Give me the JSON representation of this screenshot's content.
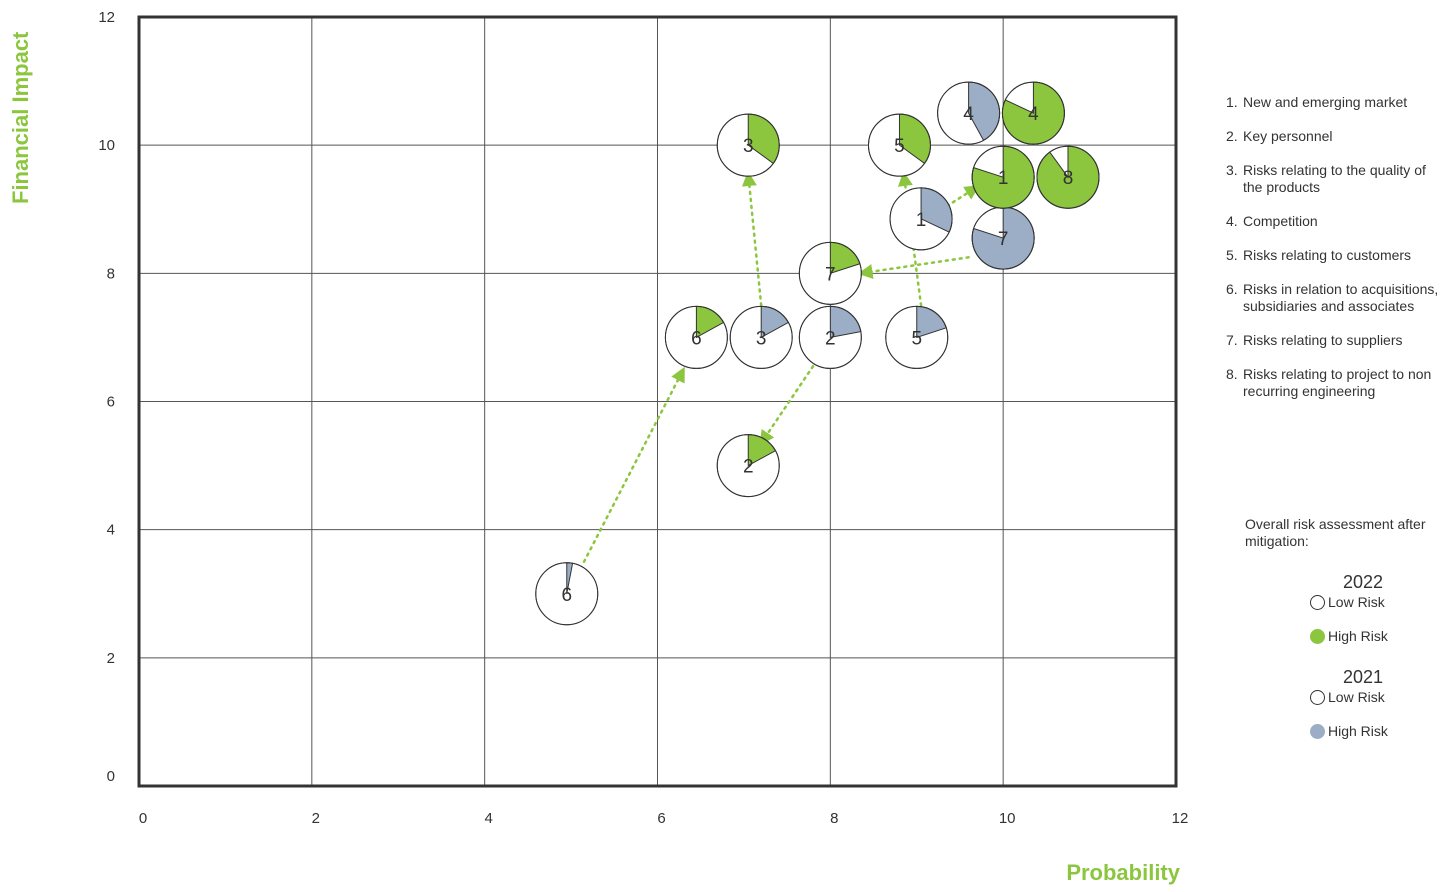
{
  "chart_data": {
    "type": "scatter",
    "xlabel": "Probability",
    "ylabel": "Financial Impact",
    "xlim": [
      0,
      12
    ],
    "ylim": [
      0,
      12
    ],
    "x_ticks": [
      "0",
      "2",
      "4",
      "6",
      "8",
      "10",
      "12"
    ],
    "y_ticks": [
      "0",
      "2",
      "4",
      "6",
      "8",
      "10",
      "12"
    ],
    "grid": true,
    "series": [
      {
        "name": "2022",
        "color": "#8cc63f",
        "points": [
          {
            "risk": "1",
            "x": 10.0,
            "y": 9.5,
            "high_risk_share": 0.8
          },
          {
            "risk": "2",
            "x": 7.05,
            "y": 5.0,
            "high_risk_share": 0.17
          },
          {
            "risk": "3",
            "x": 7.05,
            "y": 10.0,
            "high_risk_share": 0.35
          },
          {
            "risk": "4",
            "x": 10.35,
            "y": 10.5,
            "high_risk_share": 0.82
          },
          {
            "risk": "5",
            "x": 8.8,
            "y": 10.0,
            "high_risk_share": 0.35
          },
          {
            "risk": "6",
            "x": 6.45,
            "y": 7.0,
            "high_risk_share": 0.17
          },
          {
            "risk": "7",
            "x": 8.0,
            "y": 8.0,
            "high_risk_share": 0.2
          },
          {
            "risk": "8",
            "x": 10.75,
            "y": 9.5,
            "high_risk_share": 0.9
          }
        ]
      },
      {
        "name": "2021",
        "color": "#9caec5",
        "points": [
          {
            "risk": "1",
            "x": 9.05,
            "y": 8.85,
            "high_risk_share": 0.32
          },
          {
            "risk": "2",
            "x": 8.0,
            "y": 7.0,
            "high_risk_share": 0.22
          },
          {
            "risk": "3",
            "x": 7.2,
            "y": 7.0,
            "high_risk_share": 0.17
          },
          {
            "risk": "4",
            "x": 9.6,
            "y": 10.5,
            "high_risk_share": 0.42
          },
          {
            "risk": "5",
            "x": 9.0,
            "y": 7.0,
            "high_risk_share": 0.2
          },
          {
            "risk": "6",
            "x": 4.95,
            "y": 3.0,
            "high_risk_share": 0.03
          },
          {
            "risk": "7",
            "x": 10.0,
            "y": 8.55,
            "high_risk_share": 0.8
          }
        ]
      }
    ],
    "arrows": [
      {
        "risk": "6",
        "from": [
          5.15,
          3.5
        ],
        "to": [
          6.3,
          6.5
        ]
      },
      {
        "risk": "3",
        "from": [
          7.2,
          7.5
        ],
        "to": [
          7.05,
          9.55
        ]
      },
      {
        "risk": "2",
        "from": [
          7.8,
          6.55
        ],
        "to": [
          7.2,
          5.35
        ]
      },
      {
        "risk": "7",
        "from": [
          9.6,
          8.25
        ],
        "to": [
          8.35,
          8.0
        ]
      },
      {
        "risk": "5",
        "from": [
          9.05,
          7.5
        ],
        "to": [
          8.85,
          9.55
        ]
      },
      {
        "risk": "1",
        "from": [
          9.35,
          9.05
        ],
        "to": [
          9.7,
          9.35
        ]
      }
    ]
  },
  "risk_list": [
    {
      "num": "1.",
      "text": "New and emerging market"
    },
    {
      "num": "2.",
      "text": "Key personnel"
    },
    {
      "num": "3.",
      "text": "Risks relating to the quality of the products"
    },
    {
      "num": "4.",
      "text": "Competition"
    },
    {
      "num": "5.",
      "text": "Risks relating to customers"
    },
    {
      "num": "6.",
      "text": "Risks in relation to acquisitions, subsidiaries and associates"
    },
    {
      "num": "7.",
      "text": "Risks relating to suppliers"
    },
    {
      "num": "8.",
      "text": "Risks relating to project to non recurring engineering"
    }
  ],
  "legend": {
    "title": "Overall risk assessment after mitigation:",
    "groups": [
      {
        "year": "2022",
        "low_label": "Low Risk",
        "high_label": "High Risk",
        "high_color": "#8cc63f"
      },
      {
        "year": "2021",
        "low_label": "Low Risk",
        "high_label": "High Risk",
        "high_color": "#9caec5"
      }
    ]
  }
}
